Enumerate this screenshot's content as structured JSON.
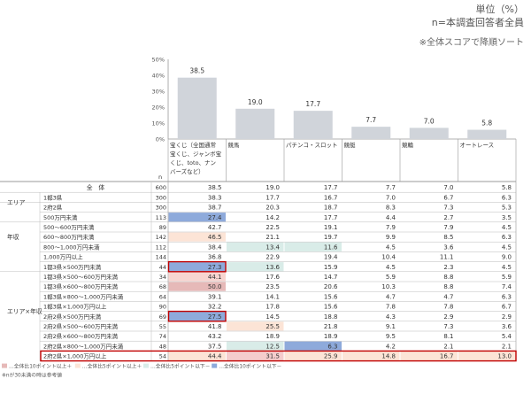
{
  "header": {
    "unit_label": "単位（%）",
    "base_label": "n=本調査回答者全員",
    "sort_note": "※全体スコアで降順ソート"
  },
  "chart_data": {
    "type": "bar",
    "categories": [
      "宝くじ（全国通常宝くじ、ジャンボ宝くじ、toto、ナンバーズなど）",
      "競馬",
      "パチンコ・スロット",
      "競艇",
      "競輪",
      "オートレース"
    ],
    "values": [
      38.5,
      19.0,
      17.7,
      7.7,
      7.0,
      5.8
    ],
    "ylim": [
      0,
      50
    ],
    "yticks": [
      "0%",
      "10%",
      "20%",
      "30%",
      "40%",
      "50%"
    ],
    "bar_color": "#d0d4da",
    "grid": false
  },
  "table": {
    "n_header": "n",
    "columns": [
      "宝くじ（全国通常宝くじ、ジャンボ宝くじ、toto、ナンバーズなど）",
      "競馬",
      "パチンコ・スロット",
      "競艇",
      "競輪",
      "オートレース"
    ],
    "column_lines": [
      [
        "宝くじ（全国通常",
        "宝くじ、ジャンボ宝",
        "くじ、toto、ナン",
        "バーズなど）"
      ],
      [
        "競馬"
      ],
      [
        "パチンコ・スロット"
      ],
      [
        "競艇"
      ],
      [
        "競輪"
      ],
      [
        "オートレース"
      ]
    ],
    "rows": [
      {
        "group": "全　体",
        "label": "",
        "n": "600",
        "vals": [
          "38.5",
          "19.0",
          "17.7",
          "7.7",
          "7.0",
          "5.8"
        ]
      },
      {
        "group": "エリア",
        "label": "1都3県",
        "n": "300",
        "vals": [
          "38.3",
          "17.7",
          "16.7",
          "7.0",
          "6.7",
          "6.3"
        ]
      },
      {
        "group": "",
        "label": "2府2県",
        "n": "300",
        "vals": [
          "38.7",
          "20.3",
          "18.7",
          "8.3",
          "7.3",
          "5.3"
        ]
      },
      {
        "group": "年収",
        "label": "500万円未満",
        "n": "113",
        "vals": [
          "27.4",
          "14.2",
          "17.7",
          "4.4",
          "2.7",
          "3.5"
        ]
      },
      {
        "group": "",
        "label": "500〜600万円未満",
        "n": "89",
        "vals": [
          "42.7",
          "22.5",
          "19.1",
          "7.9",
          "7.9",
          "4.5"
        ]
      },
      {
        "group": "",
        "label": "600〜800万円未満",
        "n": "142",
        "vals": [
          "46.5",
          "21.1",
          "19.7",
          "9.9",
          "8.5",
          "6.3"
        ]
      },
      {
        "group": "",
        "label": "800〜1,000万円未満",
        "n": "112",
        "vals": [
          "38.4",
          "13.4",
          "11.6",
          "4.5",
          "3.6",
          "4.5"
        ]
      },
      {
        "group": "",
        "label": "1,000万円以上",
        "n": "144",
        "vals": [
          "36.8",
          "22.9",
          "19.4",
          "10.4",
          "11.1",
          "9.0"
        ]
      },
      {
        "group": "エリア×年収",
        "label": "1都3県×500万円未満",
        "n": "44",
        "vals": [
          "27.3",
          "13.6",
          "15.9",
          "4.5",
          "2.3",
          "4.5"
        ]
      },
      {
        "group": "",
        "label": "1都3県×500〜600万円未満",
        "n": "34",
        "vals": [
          "44.1",
          "17.6",
          "14.7",
          "5.9",
          "8.8",
          "5.9"
        ]
      },
      {
        "group": "",
        "label": "1都3県×600〜800万円未満",
        "n": "68",
        "vals": [
          "50.0",
          "23.5",
          "20.6",
          "10.3",
          "8.8",
          "7.4"
        ]
      },
      {
        "group": "",
        "label": "1都3県×800〜1,000万円未満",
        "n": "64",
        "vals": [
          "39.1",
          "14.1",
          "15.6",
          "4.7",
          "4.7",
          "6.3"
        ]
      },
      {
        "group": "",
        "label": "1都3県×1,000万円以上",
        "n": "90",
        "vals": [
          "32.2",
          "17.8",
          "15.6",
          "7.8",
          "7.8",
          "6.7"
        ]
      },
      {
        "group": "",
        "label": "2府2県×500万円未満",
        "n": "69",
        "vals": [
          "27.5",
          "14.5",
          "18.8",
          "4.3",
          "2.9",
          "2.9"
        ]
      },
      {
        "group": "",
        "label": "2府2県×500〜600万円未満",
        "n": "55",
        "vals": [
          "41.8",
          "25.5",
          "21.8",
          "9.1",
          "7.3",
          "3.6"
        ]
      },
      {
        "group": "",
        "label": "2府2県×600〜800万円未満",
        "n": "74",
        "vals": [
          "43.2",
          "18.9",
          "18.9",
          "9.5",
          "8.1",
          "5.4"
        ]
      },
      {
        "group": "",
        "label": "2府2県×800〜1,000万円未満",
        "n": "48",
        "vals": [
          "37.5",
          "12.5",
          "6.3",
          "4.2",
          "2.1",
          "2.1"
        ]
      },
      {
        "group": "",
        "label": "2府2県×1,000万円以上",
        "n": "54",
        "vals": [
          "44.4",
          "31.5",
          "25.9",
          "14.8",
          "16.7",
          "13.0"
        ]
      }
    ],
    "highlights": [
      {
        "row": 3,
        "col": 0,
        "color": "#8eaadb"
      },
      {
        "row": 5,
        "col": 0,
        "color": "#fce4d6"
      },
      {
        "row": 6,
        "col": 1,
        "color": "#d9ece8"
      },
      {
        "row": 6,
        "col": 2,
        "color": "#d9ece8"
      },
      {
        "row": 8,
        "col": 0,
        "color": "#8eaadb"
      },
      {
        "row": 8,
        "col": 1,
        "color": "#d9ece8"
      },
      {
        "row": 9,
        "col": 0,
        "color": "#f8d5d0"
      },
      {
        "row": 10,
        "col": 0,
        "color": "#e6b9b8"
      },
      {
        "row": 13,
        "col": 0,
        "color": "#8eaadb"
      },
      {
        "row": 14,
        "col": 1,
        "color": "#fce4d6"
      },
      {
        "row": 16,
        "col": 1,
        "color": "#d9ece8"
      },
      {
        "row": 16,
        "col": 2,
        "color": "#8eaadb"
      },
      {
        "row": 17,
        "col": 0,
        "color": "#fce4d6"
      },
      {
        "row": 17,
        "col": 1,
        "color": "#f4cccc"
      },
      {
        "row": 17,
        "col": 2,
        "color": "#fce4d6"
      },
      {
        "row": 17,
        "col": 3,
        "color": "#fce4d6"
      },
      {
        "row": 17,
        "col": 4,
        "color": "#fce4d6"
      },
      {
        "row": 17,
        "col": 5,
        "color": "#fce4d6"
      }
    ],
    "outlined_cells": [
      {
        "row": 8,
        "col": 0
      },
      {
        "row": 13,
        "col": 0
      }
    ],
    "outlined_rows": [
      17
    ],
    "outline_color": "#c00000"
  },
  "legend": {
    "items": [
      {
        "color": "#e6b9b8",
        "text": "…全体比10ポイント以上＋"
      },
      {
        "color": "#fce4d6",
        "text": "…全体比5ポイント以上＋"
      },
      {
        "color": "#d9ece8",
        "text": "…全体比5ポイント以下－"
      },
      {
        "color": "#8eaadb",
        "text": "…全体比10ポイント以下－"
      }
    ],
    "note": "※nが30未満の時は参考値"
  }
}
